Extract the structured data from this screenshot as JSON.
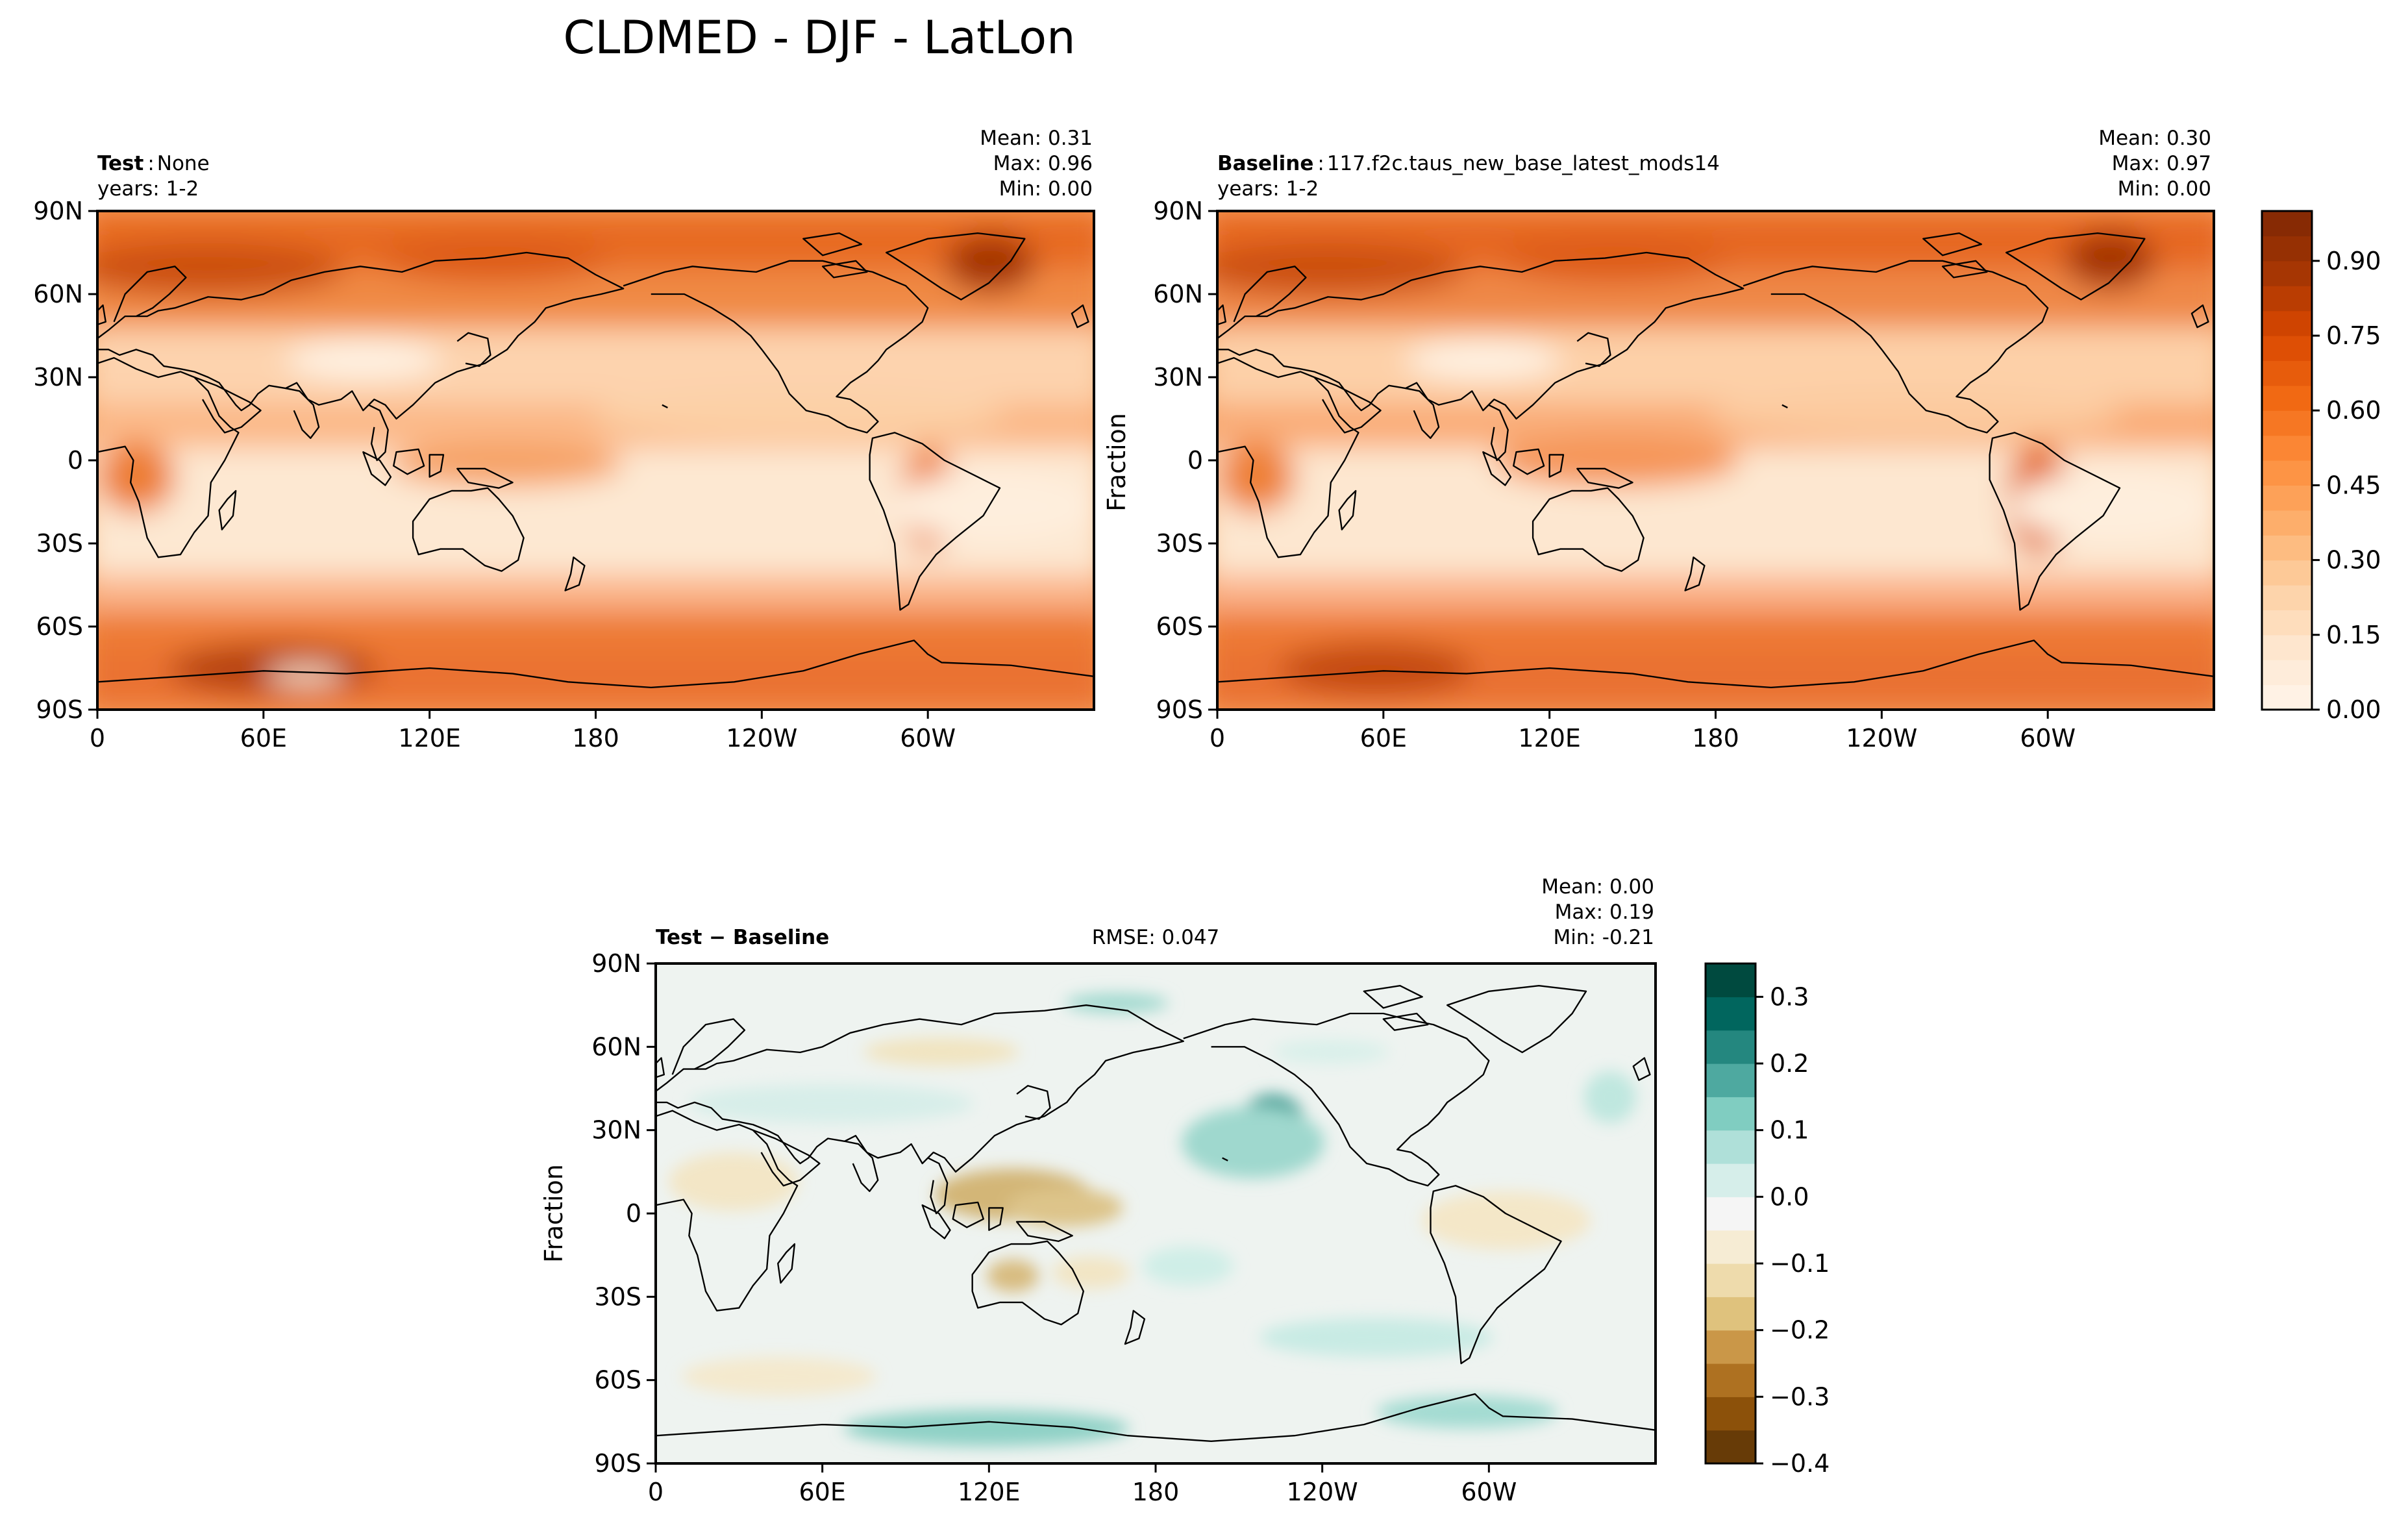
{
  "figure": {
    "title": "CLDMED - DJF - LatLon"
  },
  "colors": {
    "oranges": [
      "#fff5eb",
      "#fee6ce",
      "#fdd0a2",
      "#fdae6b",
      "#fd8d3c",
      "#f16913",
      "#d94801",
      "#a63603",
      "#7f2704"
    ],
    "brbg": [
      "#543005",
      "#8c510a",
      "#bf812d",
      "#dfc27d",
      "#f6e8c3",
      "#f5f5f5",
      "#c7eae5",
      "#80cdc1",
      "#35978f",
      "#01665e",
      "#003c30"
    ]
  },
  "panels": {
    "test": {
      "label": "Test",
      "sep": ":",
      "name": "None",
      "years": "years: 1-2",
      "mean": "Mean:  0.31",
      "max": "Max:  0.96",
      "min": "Min:  0.00"
    },
    "baseline": {
      "label": "Baseline",
      "sep": ":",
      "name": "117.f2c.taus_new_base_latest_mods14",
      "years": "years: 1-2",
      "mean": "Mean:  0.30",
      "max": "Max:  0.97",
      "min": "Min:  0.00",
      "ylabel": "Fraction"
    },
    "diff": {
      "label": "Test − Baseline",
      "rmse": "RMSE: 0.047",
      "mean": "Mean:  0.00",
      "max": "Max:  0.19",
      "min": "Min: -0.21",
      "ylabel": "Fraction"
    }
  },
  "chart_data": [
    {
      "type": "heatmap",
      "panel": "test",
      "title": "Test : None",
      "variable": "CLDMED",
      "units": "Fraction",
      "xlabel": "",
      "ylabel": "",
      "x_ticks": [
        "0",
        "60E",
        "120E",
        "180",
        "120W",
        "60W"
      ],
      "x_tick_values": [
        0,
        60,
        120,
        180,
        240,
        300
      ],
      "xlim": [
        0,
        360
      ],
      "y_ticks": [
        "90S",
        "60S",
        "30S",
        "0",
        "30N",
        "60N",
        "90N"
      ],
      "y_tick_values": [
        -90,
        -60,
        -30,
        0,
        30,
        60,
        90
      ],
      "ylim": [
        -90,
        90
      ],
      "stats": {
        "mean": 0.31,
        "max": 0.96,
        "min": 0.0
      }
    },
    {
      "type": "heatmap",
      "panel": "baseline",
      "title": "Baseline : 117.f2c.taus_new_base_latest_mods14",
      "variable": "CLDMED",
      "units": "Fraction",
      "xlabel": "",
      "ylabel": "Fraction",
      "x_ticks": [
        "0",
        "60E",
        "120E",
        "180",
        "120W",
        "60W"
      ],
      "x_tick_values": [
        0,
        60,
        120,
        180,
        240,
        300
      ],
      "xlim": [
        0,
        360
      ],
      "y_ticks": [
        "90S",
        "60S",
        "30S",
        "0",
        "30N",
        "60N",
        "90N"
      ],
      "y_tick_values": [
        -90,
        -60,
        -30,
        0,
        30,
        60,
        90
      ],
      "ylim": [
        -90,
        90
      ],
      "stats": {
        "mean": 0.3,
        "max": 0.97,
        "min": 0.0
      },
      "colorbar": {
        "ticks": [
          "0.00",
          "0.15",
          "0.30",
          "0.45",
          "0.60",
          "0.75",
          "0.90"
        ],
        "tick_values": [
          0.0,
          0.15,
          0.3,
          0.45,
          0.6,
          0.75,
          0.9
        ],
        "range": [
          0.0,
          1.0
        ],
        "levels": 20
      }
    },
    {
      "type": "heatmap",
      "panel": "diff",
      "title": "Test − Baseline",
      "variable": "CLDMED",
      "units": "Fraction",
      "xlabel": "",
      "ylabel": "Fraction",
      "x_ticks": [
        "0",
        "60E",
        "120E",
        "180",
        "120W",
        "60W"
      ],
      "x_tick_values": [
        0,
        60,
        120,
        180,
        240,
        300
      ],
      "xlim": [
        0,
        360
      ],
      "y_ticks": [
        "90S",
        "60S",
        "30S",
        "0",
        "30N",
        "60N",
        "90N"
      ],
      "y_tick_values": [
        -90,
        -60,
        -30,
        0,
        30,
        60,
        90
      ],
      "ylim": [
        -90,
        90
      ],
      "rmse": 0.047,
      "stats": {
        "mean": 0.0,
        "max": 0.19,
        "min": -0.21
      },
      "colorbar": {
        "ticks": [
          "0.3",
          "0.2",
          "0.1",
          "0.0",
          "−0.1",
          "−0.2",
          "−0.3",
          "−0.4"
        ],
        "tick_values": [
          0.3,
          0.2,
          0.1,
          0.0,
          -0.1,
          -0.2,
          -0.3,
          -0.4
        ],
        "range": [
          -0.4,
          0.35
        ],
        "levels": 15
      }
    }
  ]
}
